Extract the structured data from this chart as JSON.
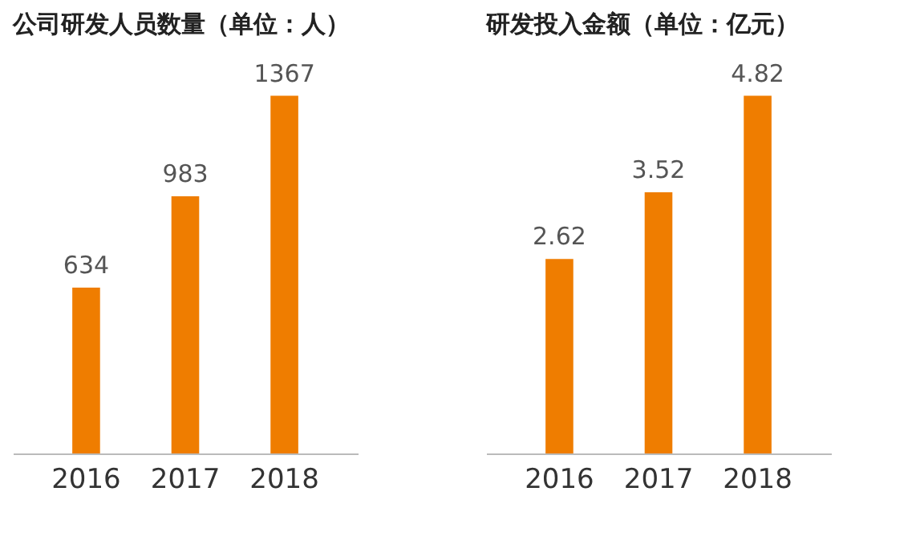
{
  "chart_data": [
    {
      "type": "bar",
      "title": "公司研发人员数量（单位：人）",
      "categories": [
        "2016",
        "2017",
        "2018"
      ],
      "values": [
        634,
        983,
        1367
      ],
      "color": "#ef7d00",
      "data_labels": true
    },
    {
      "type": "bar",
      "title": "研发投入金额（单位：亿元）",
      "categories": [
        "2016",
        "2017",
        "2018"
      ],
      "values": [
        2.62,
        3.52,
        4.82
      ],
      "color": "#ef7d00",
      "data_labels": true
    }
  ]
}
